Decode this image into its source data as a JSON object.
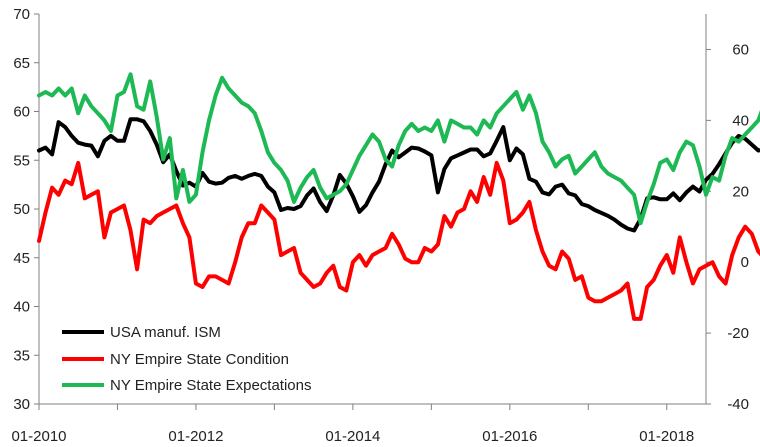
{
  "chart_data": {
    "type": "line",
    "title": "",
    "xlabel": "",
    "ylabel": "",
    "x_ticks": [
      "01-2010",
      "01-2012",
      "01-2014",
      "01-2016",
      "01-2018"
    ],
    "x_range": [
      "2010-01",
      "2018-07"
    ],
    "y_left": {
      "range": [
        30,
        70
      ],
      "ticks": [
        30,
        35,
        40,
        45,
        50,
        55,
        60,
        65,
        70
      ]
    },
    "y_right": {
      "range": [
        -40,
        70
      ],
      "ticks": [
        -40,
        -20,
        0,
        20,
        40,
        60
      ]
    },
    "grid": false,
    "legend_position": "bottom-left",
    "series": [
      {
        "name": "USA manuf. ISM",
        "axis": "left",
        "color": "#000000",
        "start": "2010-01",
        "values": [
          56.0,
          56.3,
          55.6,
          58.9,
          58.4,
          57.5,
          56.8,
          56.6,
          56.5,
          55.4,
          57.0,
          57.5,
          57.0,
          57.0,
          59.2,
          59.2,
          59.0,
          58.0,
          56.6,
          54.8,
          55.6,
          53.9,
          52.4,
          52.7,
          52.3,
          53.7,
          52.8,
          52.6,
          52.7,
          53.2,
          53.4,
          53.1,
          53.4,
          53.6,
          53.4,
          52.3,
          51.7,
          49.9,
          50.1,
          50.0,
          50.3,
          51.4,
          52.1,
          50.7,
          49.8,
          51.4,
          53.5,
          52.6,
          51.3,
          49.7,
          50.4,
          51.7,
          52.8,
          54.6,
          56.0,
          55.3,
          55.8,
          56.3,
          56.2,
          55.9,
          55.5,
          51.7,
          54.1,
          55.2,
          55.5,
          55.8,
          56.1,
          56.1,
          55.4,
          55.7,
          57.0,
          58.4,
          55.0,
          56.2,
          55.6,
          53.1,
          52.8,
          51.7,
          51.5,
          52.3,
          52.5,
          51.6,
          51.4,
          50.5,
          50.3,
          49.9,
          49.6,
          49.3,
          48.9,
          48.4,
          48.0,
          47.8,
          49.0,
          51.1,
          51.2,
          51.0,
          51.0,
          51.6,
          50.9,
          51.7,
          52.3,
          51.8,
          53.0,
          53.6,
          54.6,
          55.7,
          56.8,
          57.5,
          57.2,
          56.6,
          56.0,
          56.1,
          56.5,
          56.4,
          57.4,
          58.5,
          59.7,
          60.8,
          58.6,
          58.2,
          59.1,
          59.3,
          59.1,
          60.8,
          59.6,
          57.3,
          57.9,
          58.7
        ],
        "values_end": "2018-06"
      },
      {
        "name": "NY Empire State Condition",
        "axis": "right",
        "color": "#ff0000",
        "start": "2010-01",
        "values": [
          6,
          14,
          21,
          19,
          23,
          22,
          28,
          18,
          19,
          20,
          7,
          14,
          15,
          16,
          9,
          -2,
          12,
          11,
          13,
          14,
          15,
          16,
          11,
          7,
          -6,
          -7,
          -4,
          -4,
          -5,
          -6,
          0,
          7,
          11,
          11,
          16,
          14,
          12,
          2,
          3,
          4,
          -3,
          -5,
          -7,
          -6,
          -3,
          -1,
          -7,
          -8,
          0,
          2,
          -1,
          2,
          3,
          4,
          8,
          5,
          1,
          0,
          0,
          4,
          3,
          5,
          13,
          10,
          14,
          15,
          20,
          17,
          24,
          19,
          28,
          23,
          11,
          12,
          14,
          17,
          9,
          3,
          -1,
          -2,
          3,
          1,
          -5,
          -4,
          -10,
          -11,
          -11,
          -10,
          -9,
          -8,
          -6,
          -16,
          -16,
          -7,
          -5,
          -1,
          2,
          -3,
          7,
          0,
          -6,
          -2,
          -1,
          0,
          -4,
          -6,
          2,
          7,
          10,
          8,
          3,
          1,
          6,
          11,
          13,
          17,
          18,
          20,
          19,
          22,
          22,
          24,
          27,
          22,
          20,
          19,
          17,
          14,
          21,
          18,
          14,
          23,
          24,
          22,
          20,
          25
        ],
        "values_end": "2018-06"
      },
      {
        "name": "NY Empire State Expectations",
        "axis": "right",
        "color": "#1db954",
        "start": "2010-01",
        "values": [
          47,
          48,
          47,
          49,
          47,
          49,
          42,
          47,
          44,
          42,
          40,
          37,
          47,
          48,
          53,
          44,
          43,
          51,
          41,
          29,
          35,
          18,
          26,
          17,
          19,
          31,
          40,
          47,
          52,
          49,
          47,
          45,
          44,
          42,
          37,
          31,
          28,
          26,
          23,
          17,
          21,
          24,
          26,
          21,
          18,
          19,
          20,
          22,
          26,
          30,
          33,
          36,
          34,
          29,
          27,
          33,
          37,
          39,
          37,
          38,
          37,
          40,
          34,
          40,
          39,
          38,
          38,
          36,
          40,
          38,
          42,
          44,
          46,
          48,
          43,
          47,
          42,
          34,
          31,
          27,
          29,
          30,
          25,
          27,
          29,
          31,
          27,
          25,
          24,
          23,
          21,
          19,
          11,
          17,
          22,
          28,
          29,
          26,
          31,
          34,
          33,
          27,
          19,
          24,
          23,
          30,
          35,
          34,
          36,
          38,
          40,
          45,
          44,
          40,
          42,
          45,
          47,
          44,
          48,
          49,
          50,
          47,
          48,
          49,
          48,
          51,
          48,
          19,
          37,
          37,
          40
        ],
        "values_end": "2018-07"
      }
    ]
  }
}
